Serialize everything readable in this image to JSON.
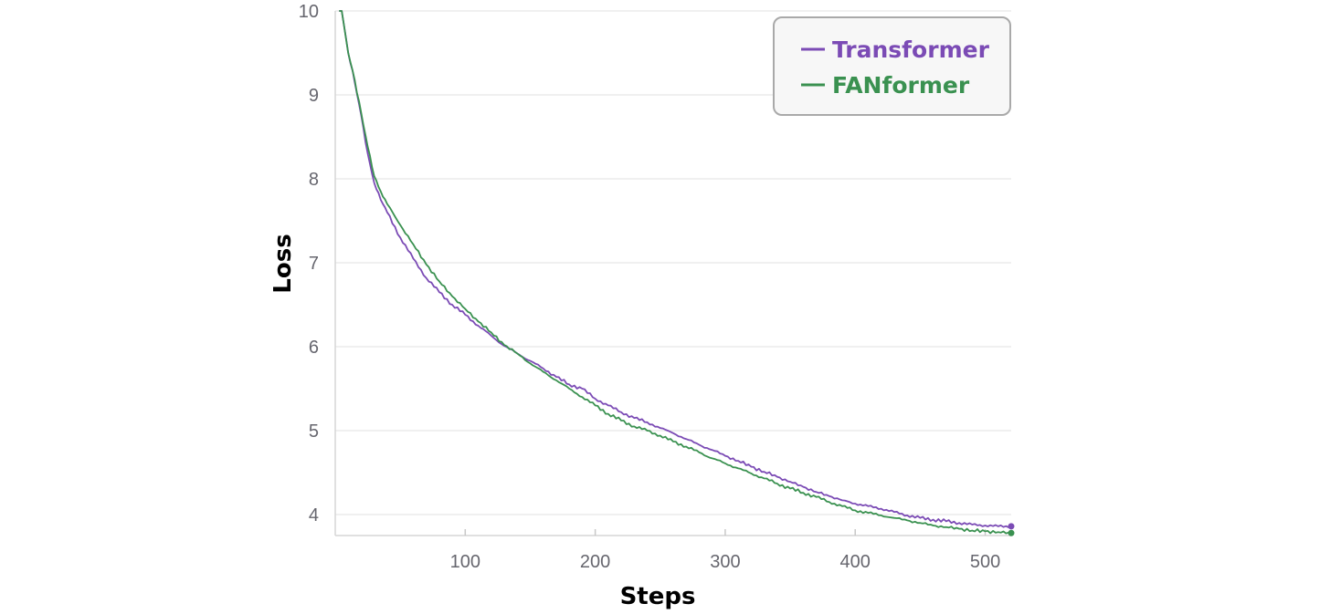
{
  "chart_data": {
    "type": "line",
    "xlabel": "Steps",
    "ylabel": "Loss",
    "xlim": [
      0,
      520
    ],
    "ylim": [
      3.75,
      10
    ],
    "xticks": [
      100,
      200,
      300,
      400,
      500
    ],
    "yticks": [
      4,
      5,
      6,
      7,
      8,
      9,
      10
    ],
    "grid": "horizontal",
    "legend_position": "top-right",
    "colors": {
      "Transformer": "#7b4bb5",
      "FANformer": "#3a9150"
    },
    "series": [
      {
        "name": "Transformer",
        "color": "#7b4bb5",
        "x": [
          3,
          5,
          10,
          15,
          20,
          25,
          30,
          35,
          40,
          50,
          60,
          70,
          80,
          90,
          100,
          110,
          120,
          130,
          140,
          150,
          160,
          170,
          180,
          190,
          200,
          210,
          220,
          230,
          240,
          250,
          260,
          270,
          280,
          290,
          300,
          310,
          320,
          330,
          340,
          350,
          360,
          370,
          380,
          390,
          400,
          410,
          420,
          430,
          440,
          450,
          460,
          470,
          480,
          490,
          500,
          510,
          520
        ],
        "y": [
          10.0,
          10.0,
          9.5,
          9.15,
          8.75,
          8.3,
          7.95,
          7.75,
          7.6,
          7.3,
          7.05,
          6.82,
          6.65,
          6.5,
          6.38,
          6.25,
          6.13,
          6.01,
          5.92,
          5.83,
          5.74,
          5.64,
          5.55,
          5.5,
          5.38,
          5.3,
          5.22,
          5.15,
          5.1,
          5.03,
          4.97,
          4.9,
          4.83,
          4.77,
          4.7,
          4.64,
          4.57,
          4.51,
          4.45,
          4.39,
          4.33,
          4.27,
          4.22,
          4.17,
          4.13,
          4.1,
          4.07,
          4.03,
          3.99,
          3.96,
          3.94,
          3.92,
          3.9,
          3.88,
          3.87,
          3.86,
          3.86
        ]
      },
      {
        "name": "FANformer",
        "color": "#3a9150",
        "x": [
          3,
          5,
          10,
          15,
          20,
          25,
          30,
          35,
          40,
          50,
          60,
          70,
          80,
          90,
          100,
          110,
          120,
          130,
          140,
          150,
          160,
          170,
          180,
          190,
          200,
          210,
          220,
          230,
          240,
          250,
          260,
          270,
          280,
          290,
          300,
          310,
          320,
          330,
          340,
          350,
          360,
          370,
          380,
          390,
          400,
          410,
          420,
          430,
          440,
          450,
          460,
          470,
          480,
          490,
          500,
          510,
          520
        ],
        "y": [
          10.0,
          10.0,
          9.5,
          9.18,
          8.78,
          8.38,
          8.03,
          7.85,
          7.7,
          7.45,
          7.22,
          6.98,
          6.78,
          6.6,
          6.45,
          6.3,
          6.17,
          6.02,
          5.92,
          5.8,
          5.7,
          5.6,
          5.5,
          5.4,
          5.3,
          5.2,
          5.12,
          5.05,
          5.0,
          4.94,
          4.87,
          4.81,
          4.74,
          4.67,
          4.61,
          4.55,
          4.49,
          4.43,
          4.37,
          4.31,
          4.26,
          4.21,
          4.15,
          4.1,
          4.05,
          4.02,
          3.99,
          3.96,
          3.93,
          3.9,
          3.87,
          3.85,
          3.83,
          3.81,
          3.8,
          3.79,
          3.78
        ]
      }
    ]
  }
}
